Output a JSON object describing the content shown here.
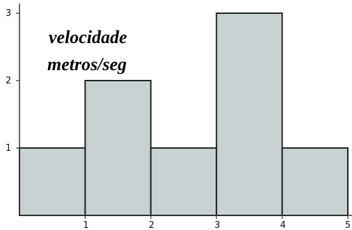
{
  "chart_data": {
    "type": "bar",
    "title": "",
    "xlabel": "",
    "ylabel": "",
    "bins": [
      {
        "x0": 0,
        "x1": 1,
        "value": 1
      },
      {
        "x0": 1,
        "x1": 2,
        "value": 2
      },
      {
        "x0": 2,
        "x1": 3,
        "value": 1
      },
      {
        "x0": 3,
        "x1": 4,
        "value": 3
      },
      {
        "x0": 4,
        "x1": 5,
        "value": 1
      }
    ],
    "xlim": [
      0,
      5
    ],
    "ylim": [
      0,
      3
    ],
    "x_ticks": [
      "1",
      "2",
      "3",
      "4",
      "5"
    ],
    "y_ticks": [
      "1",
      "2",
      "3"
    ],
    "annotation": [
      "velocidade",
      "metros/seg"
    ],
    "partial_title": "",
    "grid": false,
    "colors": {
      "bar_fill": "#c8d2d2",
      "bar_stroke": "#222222",
      "axis": "#333333"
    }
  }
}
